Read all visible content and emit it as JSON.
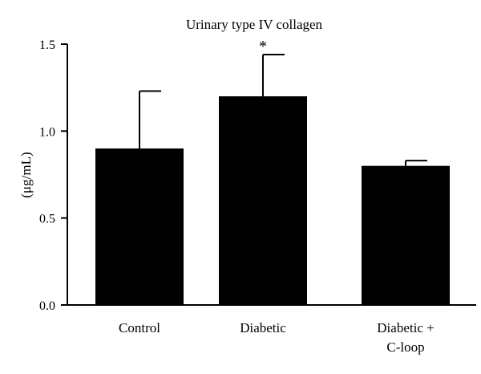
{
  "chart_data": {
    "type": "bar",
    "title": "Urinary type IV collagen",
    "ylabel": "(μg/mL)",
    "xlabel": "",
    "categories": [
      [
        "Control"
      ],
      [
        "Diabetic"
      ],
      [
        "Diabetic +",
        "C-loop"
      ]
    ],
    "values": [
      0.9,
      1.2,
      0.8
    ],
    "error_upper": [
      1.23,
      1.44,
      0.83
    ],
    "annotations": [
      "",
      "*",
      ""
    ],
    "ylim": [
      0,
      1.5
    ],
    "yticks": [
      0.0,
      0.5,
      1.0,
      1.5
    ],
    "ytick_labels": [
      "0.0",
      "0.5",
      "1.0",
      "1.5"
    ],
    "bar_color": "#000000",
    "grid": false,
    "legend": "none"
  }
}
